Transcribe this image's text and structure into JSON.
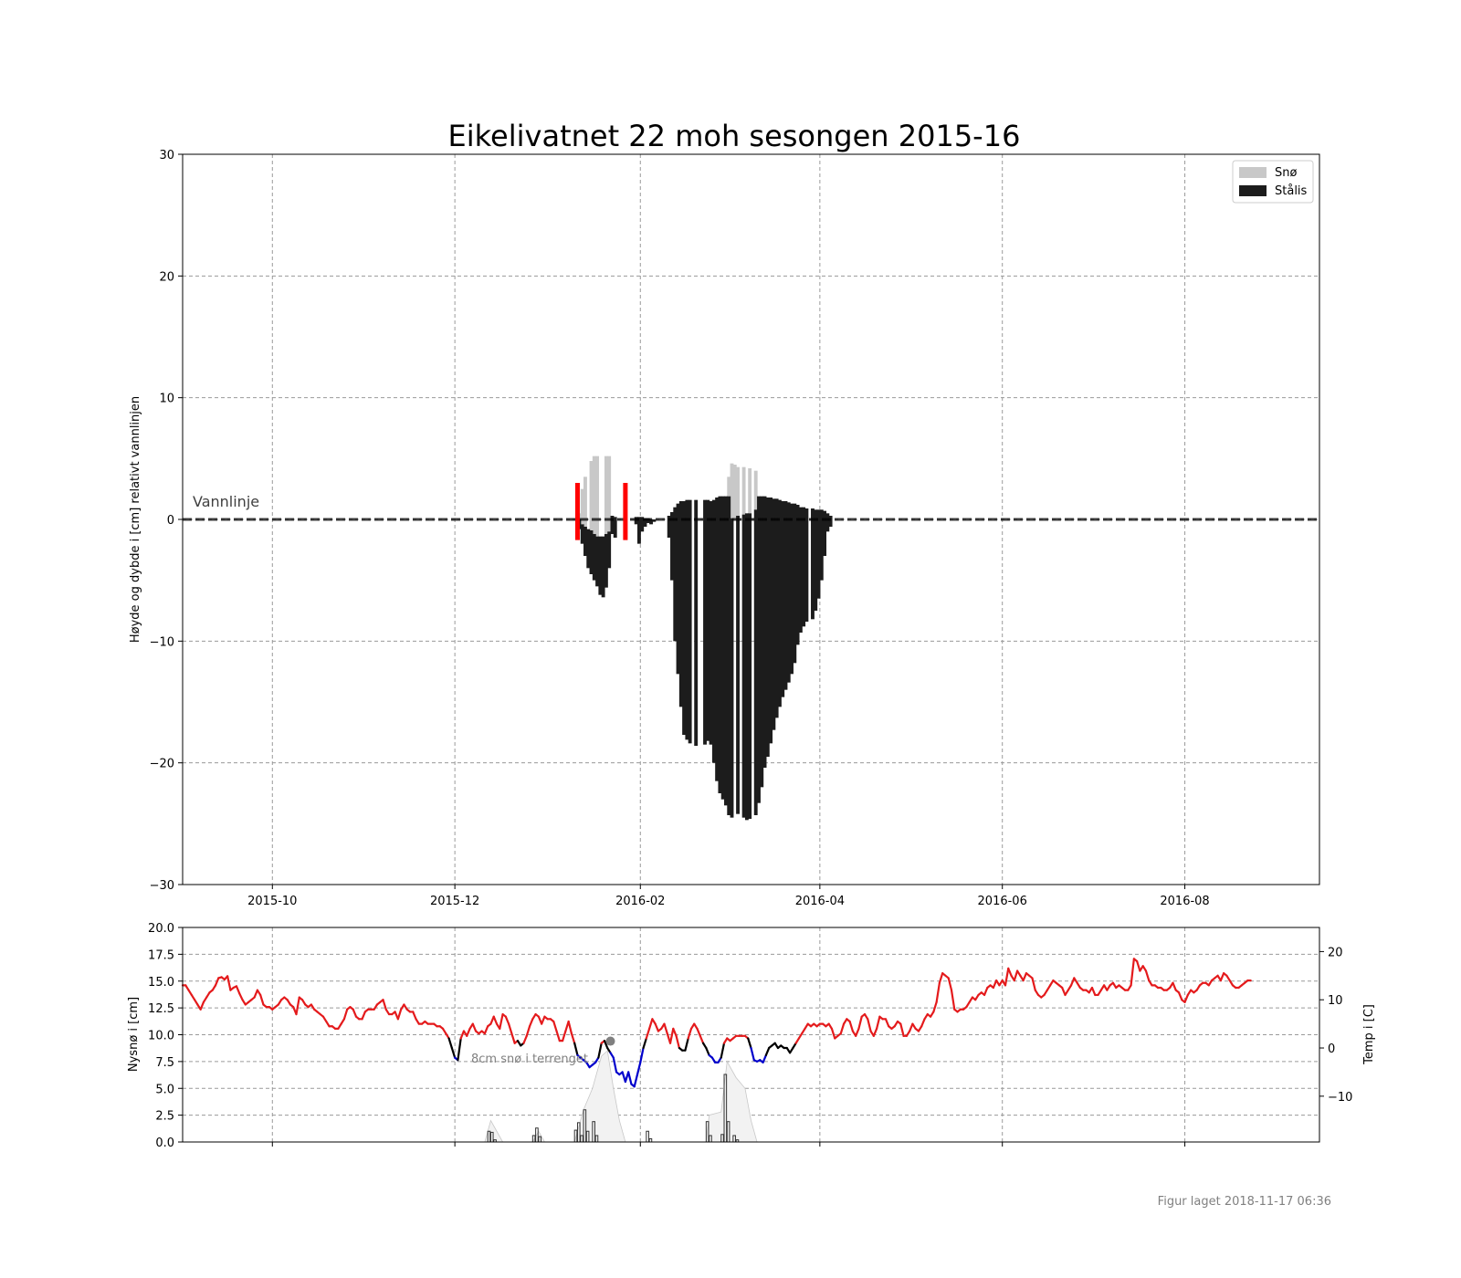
{
  "chart_data": [
    {
      "type": "bar",
      "title": "Eikelivatnet 22 moh sesongen 2015-16",
      "ylabel": "Høyde og dybde i [cm] relativt vannlinjen",
      "xlim": [
        "2015-09-01",
        "2016-09-15"
      ],
      "ylim": [
        -30,
        30
      ],
      "yticks": [
        -30,
        -20,
        -10,
        0,
        10,
        20,
        30
      ],
      "yticklabels": [
        "−30",
        "−20",
        "−10",
        "0",
        "10",
        "20",
        "30"
      ],
      "xticks": [
        "2015-10-01",
        "2015-12-01",
        "2016-02-01",
        "2016-04-01",
        "2016-06-01",
        "2016-08-01"
      ],
      "xticklabels": [
        "2015-10",
        "2015-12",
        "2016-02",
        "2016-04",
        "2016-06",
        "2016-08"
      ],
      "grid": true,
      "legend": "top-right",
      "legend_entries": [
        "Snø",
        "Stålis"
      ],
      "waterline": {
        "label": "Vannlinje",
        "y": 0
      },
      "observation_markers": [
        {
          "date": "2016-01-11",
          "y_top": 3,
          "y_bottom": -1.7
        },
        {
          "date": "2016-01-27",
          "y_top": 3,
          "y_bottom": -1.7
        }
      ],
      "series": [
        {
          "name": "Snø",
          "color": "#c8c8c8",
          "points": [
            [
              "2016-01-11",
              0,
              0.5
            ],
            [
              "2016-01-12",
              -0.4,
              2.5
            ],
            [
              "2016-01-13",
              -0.6,
              3.5
            ],
            [
              "2016-01-15",
              -0.9,
              4.8
            ],
            [
              "2016-01-16",
              -1.2,
              5.2
            ],
            [
              "2016-01-17",
              -1.4,
              5.2
            ],
            [
              "2016-01-20",
              -1.2,
              5.2
            ],
            [
              "2016-01-21",
              -1.4,
              5.2
            ],
            [
              "2016-03-01",
              1.9,
              3.5
            ],
            [
              "2016-03-02",
              0.1,
              4.6
            ],
            [
              "2016-03-03",
              0.0,
              4.5
            ],
            [
              "2016-03-04",
              0.3,
              4.3
            ],
            [
              "2016-03-06",
              0.4,
              4.3
            ],
            [
              "2016-03-08",
              0.5,
              4.2
            ],
            [
              "2016-03-10",
              0.8,
              4.0
            ]
          ]
        },
        {
          "name": "Stålis",
          "color": "#1c1c1c",
          "points": [
            [
              "2016-01-11",
              0,
              -0.8
            ],
            [
              "2016-01-12",
              -0.4,
              -2.0
            ],
            [
              "2016-01-13",
              -0.6,
              -3.0
            ],
            [
              "2016-01-14",
              -0.8,
              -4.0
            ],
            [
              "2016-01-15",
              -0.9,
              -4.5
            ],
            [
              "2016-01-16",
              -1.2,
              -5.0
            ],
            [
              "2016-01-17",
              -1.4,
              -5.5
            ],
            [
              "2016-01-18",
              -1.4,
              -6.2
            ],
            [
              "2016-01-19",
              -1.4,
              -6.4
            ],
            [
              "2016-01-20",
              -1.2,
              -5.6
            ],
            [
              "2016-01-21",
              -1.0,
              -4.0
            ],
            [
              "2016-01-22",
              0.3,
              -1.2
            ],
            [
              "2016-01-23",
              0.2,
              -1.5
            ],
            [
              "2016-01-30",
              0.2,
              -0.4
            ],
            [
              "2016-01-31",
              0.2,
              -2.0
            ],
            [
              "2016-02-01",
              0.2,
              -1.0
            ],
            [
              "2016-02-02",
              0.1,
              -0.6
            ],
            [
              "2016-02-03",
              0.1,
              -0.3
            ],
            [
              "2016-02-04",
              0.0,
              -0.4
            ],
            [
              "2016-02-05",
              0.0,
              -0.2
            ],
            [
              "2016-02-10",
              0.3,
              -1.5
            ],
            [
              "2016-02-11",
              0.6,
              -5.0
            ],
            [
              "2016-02-12",
              1.0,
              -10.0
            ],
            [
              "2016-02-13",
              1.3,
              -12.7
            ],
            [
              "2016-02-14",
              1.5,
              -15.4
            ],
            [
              "2016-02-15",
              1.5,
              -17.7
            ],
            [
              "2016-02-16",
              1.6,
              -18.1
            ],
            [
              "2016-02-17",
              1.6,
              -18.4
            ],
            [
              "2016-02-19",
              1.6,
              -18.6
            ],
            [
              "2016-02-22",
              1.6,
              -18.5
            ],
            [
              "2016-02-23",
              1.6,
              -18.2
            ],
            [
              "2016-02-24",
              1.5,
              -18.5
            ],
            [
              "2016-02-25",
              1.6,
              -20.0
            ],
            [
              "2016-02-26",
              1.8,
              -21.5
            ],
            [
              "2016-02-27",
              1.9,
              -22.5
            ],
            [
              "2016-02-28",
              1.9,
              -23.0
            ],
            [
              "2016-02-29",
              1.9,
              -23.5
            ],
            [
              "2016-03-01",
              1.9,
              -24.3
            ],
            [
              "2016-03-02",
              0.1,
              -24.5
            ],
            [
              "2016-03-04",
              0.3,
              -24.2
            ],
            [
              "2016-03-06",
              0.4,
              -24.5
            ],
            [
              "2016-03-07",
              0.5,
              -24.7
            ],
            [
              "2016-03-08",
              0.5,
              -24.6
            ],
            [
              "2016-03-10",
              0.8,
              -24.3
            ],
            [
              "2016-03-11",
              1.9,
              -23.3
            ],
            [
              "2016-03-12",
              1.9,
              -22.0
            ],
            [
              "2016-03-13",
              1.9,
              -20.4
            ],
            [
              "2016-03-14",
              1.8,
              -19.5
            ],
            [
              "2016-03-15",
              1.8,
              -18.4
            ],
            [
              "2016-03-16",
              1.7,
              -17.3
            ],
            [
              "2016-03-17",
              1.7,
              -16.3
            ],
            [
              "2016-03-18",
              1.6,
              -15.4
            ],
            [
              "2016-03-19",
              1.5,
              -14.6
            ],
            [
              "2016-03-20",
              1.5,
              -14.0
            ],
            [
              "2016-03-21",
              1.4,
              -13.4
            ],
            [
              "2016-03-22",
              1.3,
              -12.7
            ],
            [
              "2016-03-23",
              1.3,
              -11.8
            ],
            [
              "2016-03-24",
              1.2,
              -10.3
            ],
            [
              "2016-03-25",
              1.0,
              -9.3
            ],
            [
              "2016-03-26",
              1.0,
              -8.8
            ],
            [
              "2016-03-27",
              0.9,
              -8.4
            ],
            [
              "2016-03-29",
              0.9,
              -8.2
            ],
            [
              "2016-03-30",
              0.8,
              -7.5
            ],
            [
              "2016-03-31",
              0.8,
              -6.5
            ],
            [
              "2016-04-01",
              0.8,
              -5.0
            ],
            [
              "2016-04-02",
              0.7,
              -3.0
            ],
            [
              "2016-04-03",
              0.5,
              -1.0
            ],
            [
              "2016-04-04",
              0.3,
              -0.6
            ]
          ]
        }
      ]
    },
    {
      "type": "line",
      "ylabel": "Nysnø i [cm]",
      "ylabel_right": "Temp i [C]",
      "xlim": [
        "2015-09-01",
        "2016-09-15"
      ],
      "ylim": [
        0,
        20
      ],
      "yticks": [
        0,
        2.5,
        5,
        7.5,
        10,
        12.5,
        15,
        17.5,
        20
      ],
      "yticklabels": [
        "0.0",
        "2.5",
        "5.0",
        "7.5",
        "10.0",
        "12.5",
        "15.0",
        "17.5",
        "20.0"
      ],
      "ylim_right": [
        -19.5,
        25
      ],
      "yticks_right": [
        -10,
        0,
        10,
        20
      ],
      "yticklabels_right": [
        "−10",
        "0",
        "10",
        "20"
      ],
      "grid": true,
      "annotation": {
        "text": "8cm snø i terrenget",
        "date": "2016-01-22",
        "value": 9.4
      },
      "temperature_colors": {
        "above_1C": "#e41a1c",
        "between": "#000000",
        "below_-1C": "#0000cc"
      },
      "temperature_daily_start": "2015-09-01",
      "temperature": [
        13.0,
        13.0,
        12.0,
        11.0,
        10.0,
        9.0,
        8.0,
        9.5,
        10.5,
        11.5,
        12.0,
        13.0,
        14.5,
        14.7,
        14.2,
        14.9,
        12.0,
        12.5,
        12.8,
        11.3,
        10.0,
        9.0,
        9.5,
        10.0,
        10.5,
        12.0,
        11.0,
        9.0,
        8.5,
        8.5,
        8.0,
        8.5,
        9.0,
        10.0,
        10.5,
        10.0,
        9.0,
        8.5,
        7.0,
        10.5,
        10.0,
        9.0,
        8.5,
        9.0,
        8.0,
        7.5,
        7.0,
        6.5,
        5.5,
        4.5,
        4.5,
        4.0,
        4.0,
        5.0,
        6.0,
        8.0,
        8.5,
        8.0,
        6.5,
        6.0,
        6.0,
        7.5,
        8.0,
        8.0,
        8.0,
        9.0,
        9.5,
        10.0,
        8.0,
        7.0,
        7.0,
        7.5,
        6.0,
        8.0,
        9.0,
        8.0,
        7.5,
        7.5,
        6.0,
        5.0,
        5.0,
        5.5,
        5.0,
        5.0,
        5.0,
        4.5,
        4.5,
        4.0,
        3.0,
        2.0,
        0.0,
        -2.0,
        -2.5,
        2.0,
        3.5,
        2.5,
        4.0,
        5.0,
        3.5,
        3.0,
        3.5,
        3.0,
        4.5,
        5.0,
        6.5,
        5.0,
        4.0,
        7.0,
        6.5,
        5.0,
        3.0,
        1.0,
        1.5,
        0.5,
        1.0,
        2.5,
        4.5,
        6.0,
        7.0,
        6.5,
        5.0,
        6.5,
        6.0,
        6.0,
        5.5,
        3.5,
        1.5,
        1.5,
        3.5,
        5.5,
        3.0,
        1.0,
        -1.5,
        -2.0,
        -2.5,
        -3.0,
        -4.0,
        -3.5,
        -3.0,
        -2.0,
        1.0,
        1.5,
        0.0,
        -1.0,
        -2.0,
        -5.0,
        -5.5,
        -5.0,
        -7.0,
        -5.0,
        -7.5,
        -8.0,
        -5.5,
        -3.0,
        0.0,
        2.0,
        4.0,
        6.0,
        5.0,
        3.5,
        4.0,
        5.0,
        3.0,
        1.0,
        4.0,
        2.5,
        0.0,
        -0.5,
        -0.5,
        2.0,
        4.0,
        5.0,
        4.0,
        2.5,
        1.0,
        0.0,
        -1.5,
        -2.0,
        -3.0,
        -3.0,
        -2.0,
        1.0,
        2.0,
        1.5,
        2.0,
        2.5,
        2.5,
        2.5,
        2.5,
        2.0,
        0.0,
        -2.5,
        -2.8,
        -2.5,
        -3.0,
        -1.5,
        0.0,
        0.5,
        1.0,
        0.0,
        0.5,
        0.0,
        0.0,
        -1.0,
        0.0,
        1.0,
        2.0,
        3.0,
        4.0,
        5.0,
        4.5,
        5.0,
        4.5,
        5.0,
        5.0,
        4.5,
        5.0,
        4.0,
        2.0,
        2.5,
        3.0,
        5.0,
        6.0,
        5.5,
        3.5,
        2.5,
        4.0,
        6.5,
        7.0,
        6.0,
        3.5,
        2.5,
        4.0,
        6.5,
        6.0,
        6.0,
        4.5,
        4.0,
        4.5,
        5.5,
        5.0,
        2.5,
        2.5,
        3.5,
        5.0,
        4.0,
        3.5,
        4.5,
        6.0,
        7.0,
        6.5,
        7.5,
        9.5,
        13.5,
        15.5,
        15.0,
        14.5,
        12.0,
        8.0,
        7.5,
        8.0,
        8.0,
        8.5,
        9.5,
        10.5,
        10.0,
        11.0,
        11.5,
        11.0,
        12.5,
        13.0,
        12.5,
        14.0,
        13.0,
        14.0,
        13.0,
        16.5,
        15.0,
        14.0,
        16.0,
        15.0,
        14.0,
        15.5,
        15.0,
        14.5,
        12.0,
        11.0,
        10.5,
        11.0,
        12.0,
        13.0,
        14.0,
        13.5,
        13.0,
        12.5,
        11.0,
        12.0,
        13.0,
        14.5,
        13.5,
        12.5,
        12.0,
        12.0,
        11.5,
        12.5,
        11.0,
        11.0,
        12.0,
        13.0,
        12.0,
        13.0,
        13.5,
        12.5,
        13.0,
        12.5,
        12.0,
        12.0,
        13.0,
        18.5,
        18.0,
        16.0,
        17.0,
        16.0,
        14.0,
        13.0,
        13.0,
        12.5,
        12.5,
        12.0,
        12.0,
        12.5,
        13.5,
        12.0,
        11.5,
        10.0,
        9.5,
        11.0,
        12.0,
        11.5,
        12.0,
        13.0,
        13.5,
        13.5,
        13.0,
        14.0,
        14.5,
        15.0,
        14.0,
        15.5,
        15.0,
        14.0,
        13.0,
        12.5,
        12.5,
        13.0,
        13.5,
        14.0,
        14.0
      ],
      "new_snow_bars": [
        {
          "date": "2015-12-12",
          "value": 1.0
        },
        {
          "date": "2015-12-13",
          "value": 0.9
        },
        {
          "date": "2015-12-14",
          "value": 0.2
        },
        {
          "date": "2015-12-27",
          "value": 0.6
        },
        {
          "date": "2015-12-28",
          "value": 1.3
        },
        {
          "date": "2015-12-29",
          "value": 0.5
        },
        {
          "date": "2016-01-10",
          "value": 1.1
        },
        {
          "date": "2016-01-11",
          "value": 1.8
        },
        {
          "date": "2016-01-12",
          "value": 0.6
        },
        {
          "date": "2016-01-13",
          "value": 3.0
        },
        {
          "date": "2016-01-14",
          "value": 1.0
        },
        {
          "date": "2016-01-16",
          "value": 1.9
        },
        {
          "date": "2016-01-17",
          "value": 0.6
        },
        {
          "date": "2016-02-03",
          "value": 1.0
        },
        {
          "date": "2016-02-04",
          "value": 0.3
        },
        {
          "date": "2016-02-23",
          "value": 1.9
        },
        {
          "date": "2016-02-24",
          "value": 0.6
        },
        {
          "date": "2016-02-28",
          "value": 0.7
        },
        {
          "date": "2016-02-29",
          "value": 6.3
        },
        {
          "date": "2016-03-01",
          "value": 1.9
        },
        {
          "date": "2016-03-03",
          "value": 0.6
        },
        {
          "date": "2016-03-04",
          "value": 0.2
        }
      ],
      "snow_depth_terrain": [
        {
          "date": "2015-12-11",
          "value": 0
        },
        {
          "date": "2015-12-13",
          "value": 2.0
        },
        {
          "date": "2015-12-15",
          "value": 1.0
        },
        {
          "date": "2015-12-17",
          "value": 0
        },
        {
          "date": "2015-12-27",
          "value": 0
        },
        {
          "date": "2015-12-29",
          "value": 1.0
        },
        {
          "date": "2015-12-31",
          "value": 0
        },
        {
          "date": "2016-01-10",
          "value": 0
        },
        {
          "date": "2016-01-13",
          "value": 3.0
        },
        {
          "date": "2016-01-16",
          "value": 5.0
        },
        {
          "date": "2016-01-19",
          "value": 8.0
        },
        {
          "date": "2016-01-21",
          "value": 8.5
        },
        {
          "date": "2016-01-23",
          "value": 5.0
        },
        {
          "date": "2016-01-25",
          "value": 2.0
        },
        {
          "date": "2016-01-27",
          "value": 0
        },
        {
          "date": "2016-02-23",
          "value": 0
        },
        {
          "date": "2016-02-24",
          "value": 2.5
        },
        {
          "date": "2016-02-28",
          "value": 2.8
        },
        {
          "date": "2016-03-01",
          "value": 7.5
        },
        {
          "date": "2016-03-04",
          "value": 6.0
        },
        {
          "date": "2016-03-07",
          "value": 5.0
        },
        {
          "date": "2016-03-09",
          "value": 2.0
        },
        {
          "date": "2016-03-11",
          "value": 0
        }
      ]
    }
  ],
  "footer": {
    "text": "Figur laget 2018-11-17 06:36"
  }
}
